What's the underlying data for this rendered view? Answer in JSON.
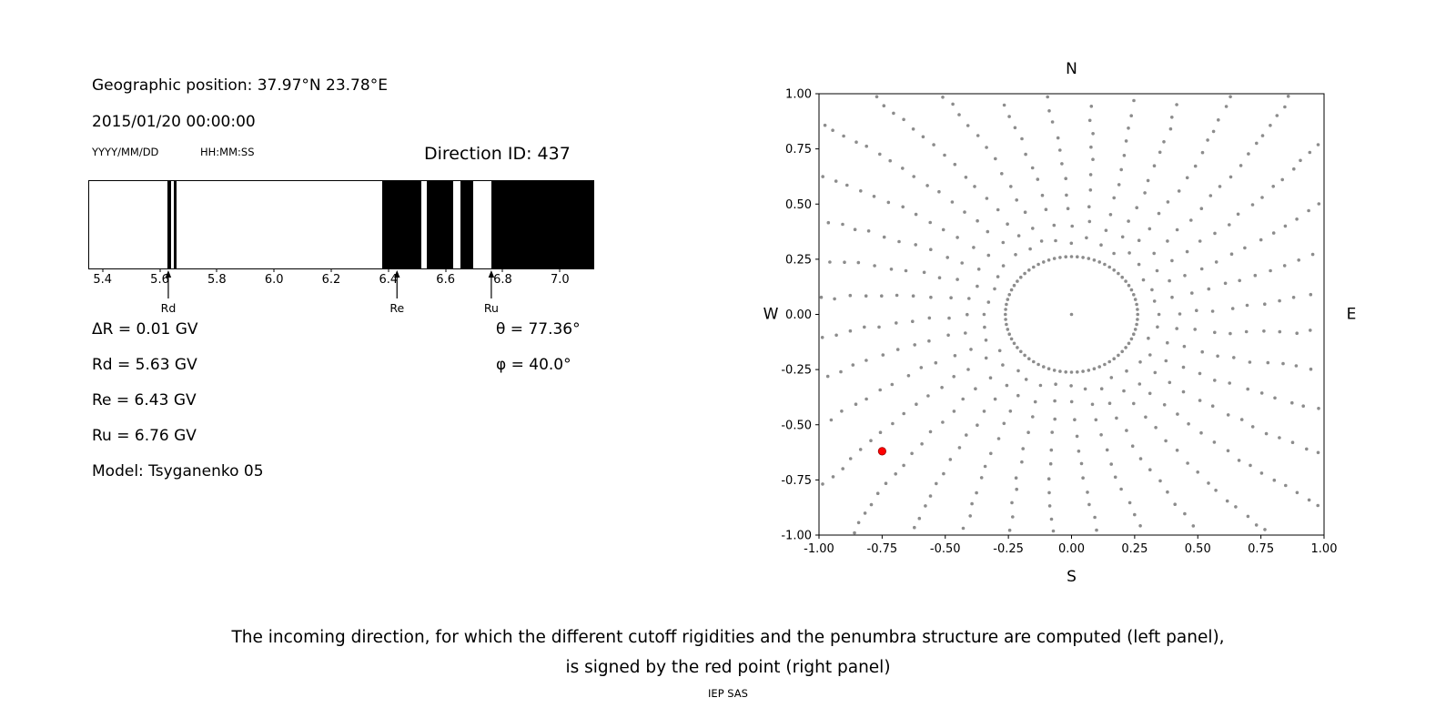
{
  "page": {
    "caption_line1": "The incoming direction, for which the different cutoff rigidities and the penumbra structure are computed (left panel),",
    "caption_line2": "is signed by the red point (right panel)",
    "credit": "IEP SAS"
  },
  "left_panel": {
    "geographic_position": "Geographic position: 37.97°N 23.78°E",
    "datetime": "2015/01/20 00:00:00",
    "date_format_label": "YYYY/MM/DD",
    "time_format_label": "HH:MM:SS",
    "direction_id": "Direction ID: 437",
    "info_lines": [
      "ΔR = 0.01 GV",
      "Rd = 5.63 GV",
      "Re = 6.43 GV",
      "Ru = 6.76 GV",
      "Model: Tsyganenko 05"
    ],
    "angle_lines": [
      "θ = 77.36°",
      "φ = 40.0°"
    ]
  },
  "chart_data": [
    {
      "type": "bar",
      "subtype": "penumbra-band-plot",
      "xlim": [
        5.35,
        7.12
      ],
      "xticks": [
        5.4,
        5.6,
        5.8,
        6.0,
        6.2,
        6.4,
        6.6,
        6.8,
        7.0
      ],
      "tick_decimals": 1,
      "band_color": "#000000",
      "bands_gv": [
        [
          5.625,
          5.636
        ],
        [
          5.646,
          5.657
        ],
        [
          6.38,
          6.515
        ],
        [
          6.534,
          6.627
        ],
        [
          6.652,
          6.697
        ],
        [
          6.761,
          7.12
        ]
      ],
      "markers": [
        {
          "label": "Rd",
          "value_gv": 5.63
        },
        {
          "label": "Re",
          "value_gv": 6.43
        },
        {
          "label": "Ru",
          "value_gv": 6.76
        }
      ]
    },
    {
      "type": "scatter",
      "description": "Grid of gray dots in radial spokes with inner ring; red point marks the incoming direction",
      "xlim": [
        -1,
        1
      ],
      "ylim": [
        -1,
        1
      ],
      "xticks": [
        -1,
        -0.75,
        -0.5,
        -0.25,
        0,
        0.25,
        0.5,
        0.75,
        1
      ],
      "yticks": [
        -1,
        -0.75,
        -0.5,
        -0.25,
        0,
        0.25,
        0.5,
        0.75,
        1
      ],
      "tick_decimals": 2,
      "compass_labels": {
        "top": "N",
        "bottom": "S",
        "left": "W",
        "right": "E"
      },
      "dot_color": "#8c8c8c",
      "red_point": {
        "x": -0.75,
        "y": -0.62,
        "color": "#ff0000"
      },
      "dot_pattern": {
        "n_spokes": 36,
        "r_start": 0.34,
        "r_max": 1.45,
        "base_step": 0.075,
        "step_shrink": 0.03,
        "curl_deg_per_unit_r": 9,
        "jitter": 0.007,
        "ring_radius": 0.262,
        "ring_points": 72,
        "center_point": true
      }
    }
  ]
}
